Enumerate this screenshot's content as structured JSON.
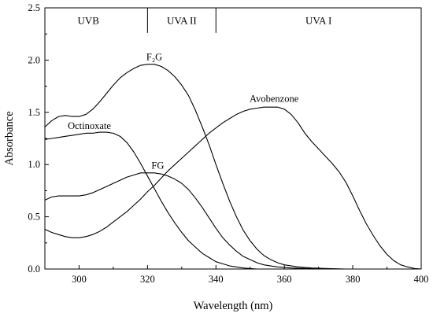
{
  "chart_data": {
    "type": "line",
    "xlabel": "Wavelength (nm)",
    "ylabel": "Absorbance",
    "xlim": [
      290,
      400
    ],
    "ylim": [
      0.0,
      2.5
    ],
    "x_ticks": [
      300,
      320,
      340,
      360,
      380,
      400
    ],
    "y_ticks": [
      0.0,
      0.5,
      1.0,
      1.5,
      2.0,
      2.5
    ],
    "x_tick_labels": [
      "300",
      "320",
      "340",
      "360",
      "380",
      "400"
    ],
    "y_tick_labels": [
      "0.0",
      "0.5",
      "1.0",
      "1.5",
      "2.0",
      "2.5"
    ],
    "grid": false,
    "legend": "none",
    "regions": [
      {
        "label": "UVB",
        "from": 290,
        "to": 320
      },
      {
        "label": "UVA II",
        "from": 320,
        "to": 340
      },
      {
        "label": "UVA I",
        "from": 340,
        "to": 400
      }
    ],
    "series": [
      {
        "name": "F₂G",
        "label_at": [
          322,
          2.0
        ],
        "points": [
          [
            290,
            1.36
          ],
          [
            292,
            1.42
          ],
          [
            294,
            1.46
          ],
          [
            296,
            1.47
          ],
          [
            298,
            1.46
          ],
          [
            300,
            1.46
          ],
          [
            302,
            1.48
          ],
          [
            304,
            1.53
          ],
          [
            306,
            1.6
          ],
          [
            308,
            1.68
          ],
          [
            310,
            1.76
          ],
          [
            312,
            1.83
          ],
          [
            314,
            1.88
          ],
          [
            316,
            1.92
          ],
          [
            318,
            1.95
          ],
          [
            320,
            1.96
          ],
          [
            322,
            1.96
          ],
          [
            324,
            1.94
          ],
          [
            326,
            1.9
          ],
          [
            328,
            1.84
          ],
          [
            330,
            1.76
          ],
          [
            332,
            1.66
          ],
          [
            334,
            1.52
          ],
          [
            336,
            1.36
          ],
          [
            338,
            1.19
          ],
          [
            340,
            1.0
          ],
          [
            342,
            0.82
          ],
          [
            344,
            0.65
          ],
          [
            346,
            0.5
          ],
          [
            348,
            0.37
          ],
          [
            350,
            0.27
          ],
          [
            352,
            0.19
          ],
          [
            354,
            0.13
          ],
          [
            356,
            0.09
          ],
          [
            358,
            0.06
          ],
          [
            360,
            0.04
          ],
          [
            364,
            0.02
          ],
          [
            368,
            0.01
          ],
          [
            372,
            0.005
          ],
          [
            378,
            0.0
          ]
        ]
      },
      {
        "name": "Avobenzone",
        "label_at": [
          357,
          1.6
        ],
        "points": [
          [
            290,
            0.38
          ],
          [
            292,
            0.35
          ],
          [
            294,
            0.33
          ],
          [
            296,
            0.31
          ],
          [
            298,
            0.3
          ],
          [
            300,
            0.3
          ],
          [
            302,
            0.31
          ],
          [
            304,
            0.33
          ],
          [
            306,
            0.36
          ],
          [
            308,
            0.4
          ],
          [
            310,
            0.45
          ],
          [
            312,
            0.5
          ],
          [
            314,
            0.55
          ],
          [
            316,
            0.61
          ],
          [
            318,
            0.67
          ],
          [
            320,
            0.74
          ],
          [
            322,
            0.8
          ],
          [
            324,
            0.87
          ],
          [
            326,
            0.94
          ],
          [
            328,
            1.0
          ],
          [
            330,
            1.06
          ],
          [
            332,
            1.12
          ],
          [
            334,
            1.18
          ],
          [
            336,
            1.24
          ],
          [
            338,
            1.3
          ],
          [
            340,
            1.35
          ],
          [
            342,
            1.4
          ],
          [
            344,
            1.44
          ],
          [
            346,
            1.48
          ],
          [
            348,
            1.51
          ],
          [
            350,
            1.53
          ],
          [
            352,
            1.54
          ],
          [
            354,
            1.55
          ],
          [
            356,
            1.55
          ],
          [
            358,
            1.55
          ],
          [
            360,
            1.53
          ],
          [
            362,
            1.48
          ],
          [
            364,
            1.4
          ],
          [
            366,
            1.3
          ],
          [
            368,
            1.22
          ],
          [
            370,
            1.15
          ],
          [
            372,
            1.08
          ],
          [
            374,
            1.01
          ],
          [
            376,
            0.93
          ],
          [
            378,
            0.83
          ],
          [
            380,
            0.7
          ],
          [
            382,
            0.56
          ],
          [
            384,
            0.43
          ],
          [
            386,
            0.32
          ],
          [
            388,
            0.22
          ],
          [
            390,
            0.14
          ],
          [
            392,
            0.08
          ],
          [
            394,
            0.04
          ],
          [
            396,
            0.02
          ],
          [
            398,
            0.005
          ],
          [
            400,
            0.0
          ]
        ]
      },
      {
        "name": "Octinoxate",
        "label_at": [
          303,
          1.34
        ],
        "points": [
          [
            290,
            1.24
          ],
          [
            292,
            1.25
          ],
          [
            294,
            1.26
          ],
          [
            296,
            1.27
          ],
          [
            298,
            1.28
          ],
          [
            300,
            1.29
          ],
          [
            302,
            1.3
          ],
          [
            304,
            1.3
          ],
          [
            306,
            1.31
          ],
          [
            308,
            1.31
          ],
          [
            310,
            1.3
          ],
          [
            312,
            1.27
          ],
          [
            314,
            1.21
          ],
          [
            316,
            1.12
          ],
          [
            318,
            1.01
          ],
          [
            320,
            0.89
          ],
          [
            322,
            0.77
          ],
          [
            324,
            0.65
          ],
          [
            326,
            0.54
          ],
          [
            328,
            0.44
          ],
          [
            330,
            0.35
          ],
          [
            332,
            0.27
          ],
          [
            334,
            0.21
          ],
          [
            336,
            0.15
          ],
          [
            338,
            0.11
          ],
          [
            340,
            0.07
          ],
          [
            342,
            0.05
          ],
          [
            344,
            0.03
          ],
          [
            348,
            0.01
          ],
          [
            352,
            0.0
          ]
        ]
      },
      {
        "name": "FG",
        "label_at": [
          323,
          0.96
        ],
        "points": [
          [
            290,
            0.66
          ],
          [
            292,
            0.69
          ],
          [
            294,
            0.7
          ],
          [
            296,
            0.7
          ],
          [
            298,
            0.7
          ],
          [
            300,
            0.7
          ],
          [
            302,
            0.71
          ],
          [
            304,
            0.73
          ],
          [
            306,
            0.76
          ],
          [
            308,
            0.79
          ],
          [
            310,
            0.82
          ],
          [
            312,
            0.85
          ],
          [
            314,
            0.88
          ],
          [
            316,
            0.9
          ],
          [
            318,
            0.92
          ],
          [
            320,
            0.92
          ],
          [
            322,
            0.92
          ],
          [
            324,
            0.91
          ],
          [
            326,
            0.89
          ],
          [
            328,
            0.86
          ],
          [
            330,
            0.82
          ],
          [
            332,
            0.76
          ],
          [
            334,
            0.68
          ],
          [
            336,
            0.59
          ],
          [
            338,
            0.49
          ],
          [
            340,
            0.39
          ],
          [
            342,
            0.3
          ],
          [
            344,
            0.23
          ],
          [
            346,
            0.17
          ],
          [
            348,
            0.12
          ],
          [
            350,
            0.09
          ],
          [
            352,
            0.06
          ],
          [
            354,
            0.04
          ],
          [
            356,
            0.03
          ],
          [
            358,
            0.02
          ],
          [
            362,
            0.01
          ],
          [
            366,
            0.005
          ],
          [
            372,
            0.0
          ]
        ]
      }
    ]
  }
}
